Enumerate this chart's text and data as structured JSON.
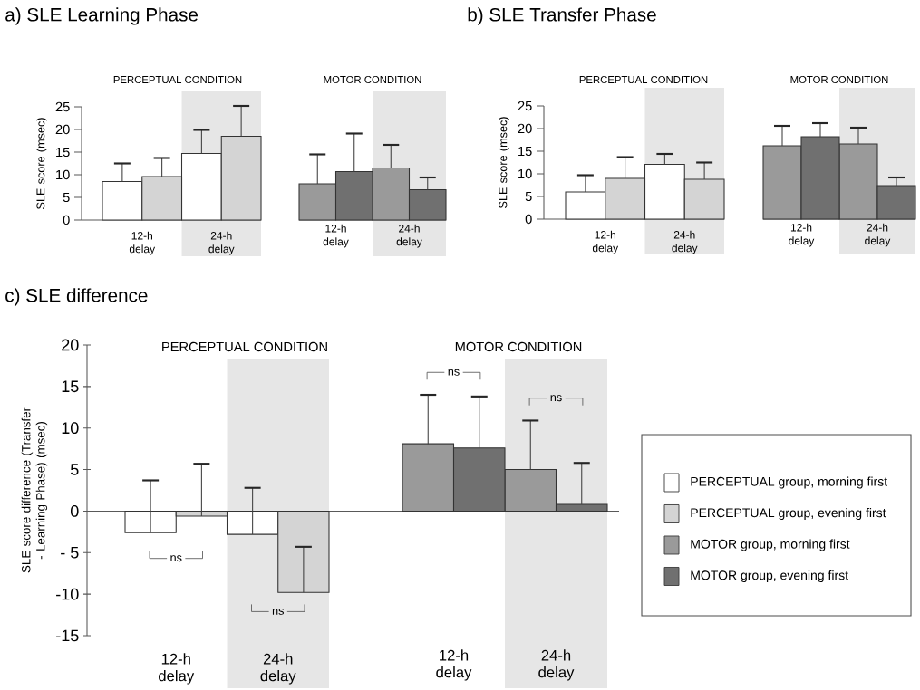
{
  "chart_data": [
    {
      "type": "bar",
      "title": "a) SLE Learning Phase",
      "subtitle": "PERCEPTUAL CONDITION",
      "ylabel": "SLE score (msec)",
      "categories": [
        "12-h delay",
        "24-h delay"
      ],
      "series": [
        {
          "color": "#ffffff",
          "values": [
            8.5,
            14.7
          ],
          "errors": [
            [
              8.5,
              12.5
            ],
            [
              14.7,
              19.9
            ]
          ]
        },
        {
          "color": "#d4d4d4",
          "values": [
            9.6,
            18.5
          ],
          "errors": [
            [
              9.6,
              13.7
            ],
            [
              18.5,
              25.2
            ]
          ]
        }
      ],
      "ylim": [
        0,
        25
      ],
      "yticks": [
        0,
        5,
        10,
        15,
        20,
        25
      ],
      "bands": [
        {
          "axis": "x",
          "from": "24-h delay",
          "to": "24-h delay",
          "color": "#e6e6e6"
        }
      ]
    },
    {
      "type": "bar",
      "subtitle": "MOTOR CONDITION",
      "categories": [
        "12-h delay",
        "24-h delay"
      ],
      "series": [
        {
          "color": "#9a9a9a",
          "values": [
            8.0,
            11.5
          ],
          "errors": [
            [
              8.0,
              14.5
            ],
            [
              11.5,
              16.6
            ]
          ]
        },
        {
          "color": "#707070",
          "values": [
            10.7,
            6.7
          ],
          "errors": [
            [
              10.7,
              19.1
            ],
            [
              6.7,
              9.4
            ]
          ]
        }
      ],
      "ylim": [
        0,
        25
      ],
      "tick_labels": "x",
      "bands": [
        {
          "axis": "x",
          "from": "24-h delay",
          "to": "24-h delay",
          "color": "#e6e6e6"
        }
      ]
    },
    {
      "type": "bar",
      "title": "b) SLE Transfer Phase",
      "subtitle": "PERCEPTUAL CONDITION",
      "ylabel": "SLE score (msec)",
      "categories": [
        "12-h delay",
        "24-h delay"
      ],
      "series": [
        {
          "color": "#ffffff",
          "values": [
            6.0,
            12.1
          ],
          "errors": [
            [
              6.0,
              9.7
            ],
            [
              12.1,
              14.4
            ]
          ]
        },
        {
          "color": "#d4d4d4",
          "values": [
            9.0,
            8.8
          ],
          "errors": [
            [
              9.0,
              13.7
            ],
            [
              8.8,
              12.5
            ]
          ]
        }
      ],
      "ylim": [
        0,
        25
      ],
      "yticks": [
        0,
        5,
        10,
        15,
        20,
        25
      ],
      "bands": [
        {
          "axis": "x",
          "from": "24-h delay",
          "to": "24-h delay",
          "color": "#e6e6e6"
        }
      ]
    },
    {
      "type": "bar",
      "subtitle": "MOTOR CONDITION",
      "categories": [
        "12-h delay",
        "24-h delay"
      ],
      "series": [
        {
          "color": "#9a9a9a",
          "values": [
            16.2,
            16.6
          ],
          "errors": [
            [
              16.2,
              20.6
            ],
            [
              16.6,
              20.2
            ]
          ]
        },
        {
          "color": "#707070",
          "values": [
            18.2,
            7.4
          ],
          "errors": [
            [
              18.2,
              21.2
            ],
            [
              7.4,
              9.2
            ]
          ]
        }
      ],
      "ylim": [
        0,
        25
      ],
      "tick_labels": "x",
      "bands": [
        {
          "axis": "x",
          "from": "24-h delay",
          "to": "24-h delay",
          "color": "#e6e6e6"
        }
      ]
    },
    {
      "type": "bar",
      "title": "c) SLE difference",
      "subtitle": "PERCEPTUAL CONDITION",
      "ylabel": "SLE score difference (Transfer - Learning Phase) (msec)",
      "categories": [
        "12-h delay",
        "24-h delay"
      ],
      "series": [
        {
          "name": "PERCEPTUAL group, morning first",
          "color": "#ffffff",
          "values": [
            -2.6,
            -2.8
          ],
          "errors": [
            [
              -2.6,
              3.7
            ],
            [
              -2.8,
              2.8
            ]
          ]
        },
        {
          "name": "PERCEPTUAL group, evening first",
          "color": "#d4d4d4",
          "values": [
            -0.6,
            -9.8
          ],
          "errors": [
            [
              -0.6,
              5.7
            ],
            [
              -9.8,
              -4.3
            ]
          ]
        }
      ],
      "ylim": [
        -15,
        20
      ],
      "yticks": [
        -15,
        -10,
        {
          "value": -5,
          "label": "- 5"
        },
        0,
        5,
        10,
        15,
        20
      ],
      "legend": "right",
      "bands": [
        {
          "axis": "x",
          "from": "24-h delay",
          "to": "24-h delay",
          "color": "#e6e6e6"
        }
      ],
      "annotations": [
        "ns",
        "ns"
      ]
    },
    {
      "type": "bar",
      "subtitle": "MOTOR CONDITION",
      "categories": [
        "12-h delay",
        "24-h delay"
      ],
      "series": [
        {
          "name": "MOTOR group, morning first",
          "color": "#9a9a9a",
          "values": [
            8.1,
            5.0
          ],
          "errors": [
            [
              8.1,
              14.0
            ],
            [
              5.0,
              10.9
            ]
          ]
        },
        {
          "name": "MOTOR group, evening first",
          "color": "#707070",
          "values": [
            7.6,
            0.8
          ],
          "errors": [
            [
              7.6,
              13.8
            ],
            [
              0.8,
              5.8
            ]
          ]
        }
      ],
      "ylim": [
        -15,
        20
      ],
      "tick_labels": "x",
      "legend": "right",
      "bands": [
        {
          "axis": "x",
          "from": "24-h delay",
          "to": "24-h delay",
          "color": "#e6e6e6"
        }
      ],
      "annotations": [
        "ns",
        "ns"
      ]
    }
  ]
}
